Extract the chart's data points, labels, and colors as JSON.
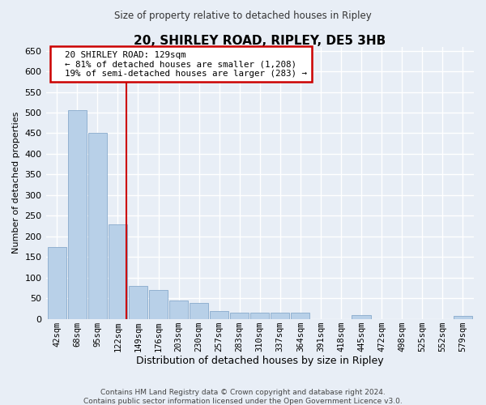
{
  "title": "20, SHIRLEY ROAD, RIPLEY, DE5 3HB",
  "subtitle": "Size of property relative to detached houses in Ripley",
  "xlabel": "Distribution of detached houses by size in Ripley",
  "ylabel": "Number of detached properties",
  "footer_line1": "Contains HM Land Registry data © Crown copyright and database right 2024.",
  "footer_line2": "Contains public sector information licensed under the Open Government Licence v3.0.",
  "bar_labels": [
    "42sqm",
    "68sqm",
    "95sqm",
    "122sqm",
    "149sqm",
    "176sqm",
    "203sqm",
    "230sqm",
    "257sqm",
    "283sqm",
    "310sqm",
    "337sqm",
    "364sqm",
    "391sqm",
    "418sqm",
    "445sqm",
    "472sqm",
    "498sqm",
    "525sqm",
    "552sqm",
    "579sqm"
  ],
  "bar_values": [
    175,
    505,
    450,
    230,
    80,
    70,
    45,
    38,
    18,
    15,
    15,
    15,
    15,
    0,
    0,
    10,
    0,
    0,
    0,
    0,
    8
  ],
  "bar_color": "#b8d0e8",
  "bar_edge_color": "#88aacc",
  "background_color": "#e8eef6",
  "grid_color": "#ffffff",
  "annotation_line1": "20 SHIRLEY ROAD: 129sqm",
  "annotation_line2": "← 81% of detached houses are smaller (1,208)",
  "annotation_line3": "19% of semi-detached houses are larger (283) →",
  "annotation_box_color": "#ffffff",
  "annotation_box_edge": "#cc0000",
  "vline_color": "#cc0000",
  "vline_x": 3.42,
  "ylim": [
    0,
    660
  ],
  "yticks": [
    0,
    50,
    100,
    150,
    200,
    250,
    300,
    350,
    400,
    450,
    500,
    550,
    600,
    650
  ]
}
